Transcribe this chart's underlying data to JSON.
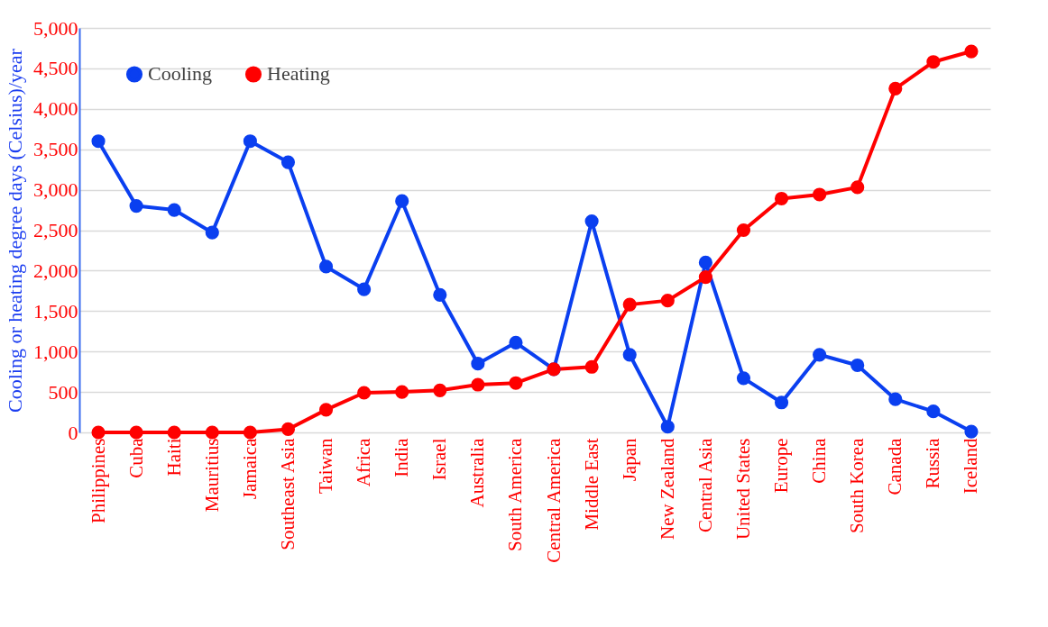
{
  "chart_data": {
    "type": "line",
    "ylabel": "Cooling or heating degree days (Celsius)/year",
    "categories": [
      "Philippines",
      "Cuba",
      "Haiti",
      "Mauritius",
      "Jamaica",
      "Southeast Asia",
      "Taiwan",
      "Africa",
      "India",
      "Israel",
      "Australia",
      "South America",
      "Central America",
      "Middle East",
      "Japan",
      "New Zealand",
      "Central Asia",
      "United States",
      "Europe",
      "China",
      "South Korea",
      "Canada",
      "Russia",
      "Iceland"
    ],
    "series": [
      {
        "name": "Cooling",
        "color": "#0a3ff0",
        "values": [
          3600,
          2800,
          2750,
          2470,
          3600,
          3340,
          2050,
          1770,
          2860,
          1700,
          850,
          1110,
          780,
          2610,
          960,
          70,
          2100,
          670,
          370,
          960,
          830,
          410,
          260,
          10
        ]
      },
      {
        "name": "Heating",
        "color": "#ff0000",
        "values": [
          0,
          0,
          0,
          0,
          0,
          40,
          280,
          490,
          500,
          520,
          590,
          610,
          780,
          810,
          1580,
          1630,
          1920,
          2500,
          2890,
          2940,
          3030,
          4250,
          4580,
          4710
        ]
      }
    ],
    "ylim": [
      0,
      5000
    ],
    "yticks": [
      0,
      500,
      {
        "value": 1000,
        "label": "1,000"
      },
      {
        "value": 1500,
        "label": "1,500"
      },
      {
        "value": 2000,
        "label": "2,000"
      },
      {
        "value": 2500,
        "label": "2,500"
      },
      {
        "value": 3000,
        "label": "3,000"
      },
      {
        "value": 3500,
        "label": "3,500"
      },
      {
        "value": 4000,
        "label": "4,000"
      },
      {
        "value": 4500,
        "label": "4,500"
      },
      {
        "value": 5000,
        "label": "5,000"
      }
    ],
    "grid": "y",
    "legend": "top left",
    "marker": "circle",
    "line_style": "solid"
  }
}
